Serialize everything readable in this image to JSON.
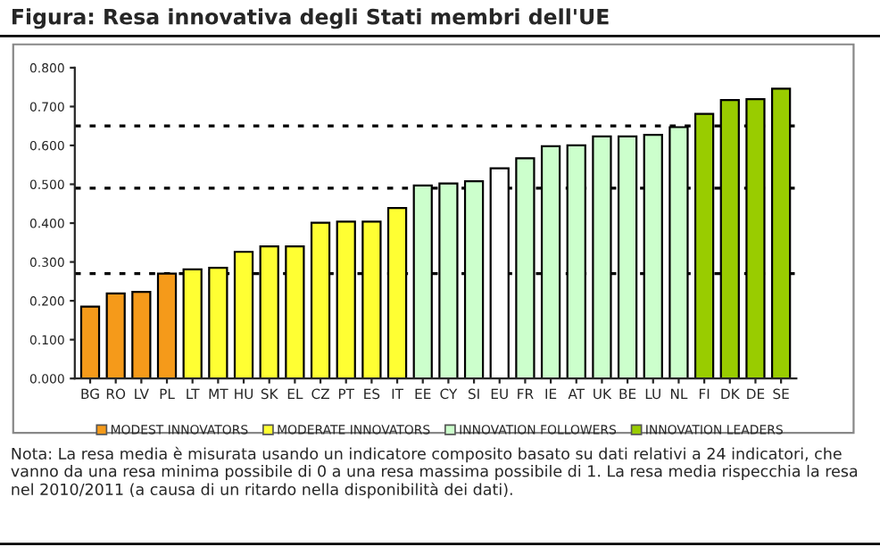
{
  "chart_data": {
    "type": "bar",
    "title": "Figura: Resa innovativa degli Stati membri dell'UE",
    "categories": [
      "BG",
      "RO",
      "LV",
      "PL",
      "LT",
      "MT",
      "HU",
      "SK",
      "EL",
      "CZ",
      "PT",
      "ES",
      "IT",
      "EE",
      "CY",
      "SI",
      "EU",
      "FR",
      "IE",
      "AT",
      "UK",
      "BE",
      "LU",
      "NL",
      "FI",
      "DK",
      "DE",
      "SE"
    ],
    "series": [
      {
        "name": "MODEST INNOVATORS",
        "color": "#f59a1a",
        "values": [
          0.185,
          0.219,
          0.223,
          0.27,
          null,
          null,
          null,
          null,
          null,
          null,
          null,
          null,
          null,
          null,
          null,
          null,
          null,
          null,
          null,
          null,
          null,
          null,
          null,
          null,
          null,
          null,
          null,
          null
        ]
      },
      {
        "name": "MODERATE INNOVATORS",
        "color": "#ffff33",
        "values": [
          null,
          null,
          null,
          null,
          0.281,
          0.285,
          0.326,
          0.34,
          0.34,
          0.401,
          0.404,
          0.404,
          0.439,
          null,
          null,
          null,
          null,
          null,
          null,
          null,
          null,
          null,
          null,
          null,
          null,
          null,
          null,
          null
        ]
      },
      {
        "name": "INNOVATION FOLLOWERS",
        "color": "#ccffcc",
        "values": [
          null,
          null,
          null,
          null,
          null,
          null,
          null,
          null,
          null,
          null,
          null,
          null,
          null,
          0.497,
          0.502,
          0.508,
          null,
          0.567,
          0.598,
          0.6,
          0.623,
          0.623,
          0.627,
          0.647,
          null,
          null,
          null,
          null
        ]
      },
      {
        "color": "#ffffff",
        "values": [
          null,
          null,
          null,
          null,
          null,
          null,
          null,
          null,
          null,
          null,
          null,
          null,
          null,
          null,
          null,
          null,
          0.541,
          null,
          null,
          null,
          null,
          null,
          null,
          null,
          null,
          null,
          null,
          null
        ]
      },
      {
        "name": "INNOVATION LEADERS",
        "color": "#99cc00",
        "values": [
          null,
          null,
          null,
          null,
          null,
          null,
          null,
          null,
          null,
          null,
          null,
          null,
          null,
          null,
          null,
          null,
          null,
          null,
          null,
          null,
          null,
          null,
          null,
          null,
          0.681,
          0.717,
          0.719,
          0.746
        ]
      }
    ],
    "ylim": [
      0,
      0.8
    ],
    "yticks": [
      {
        "value": 0,
        "label": "0.000"
      },
      {
        "value": 0.1,
        "label": "0.100"
      },
      {
        "value": 0.2,
        "label": "0.200"
      },
      {
        "value": 0.3,
        "label": "0.300"
      },
      {
        "value": 0.4,
        "label": "0.400"
      },
      {
        "value": 0.5,
        "label": "0.500"
      },
      {
        "value": 0.6,
        "label": "0.600"
      },
      {
        "value": 0.7,
        "label": "0.700"
      },
      {
        "value": 0.8,
        "label": "0.800"
      }
    ],
    "ref_lines": [
      {
        "axis": "y",
        "value": 0.27,
        "color": "#000000",
        "line_style": "dashed"
      },
      {
        "axis": "y",
        "value": 0.49,
        "color": "#000000",
        "line_style": "dashed"
      },
      {
        "axis": "y",
        "value": 0.65,
        "color": "#000000",
        "line_style": "dashed"
      }
    ],
    "grid": false,
    "legend": "bottom",
    "annotations": [
      "Nota: La resa media è misurata usando un indicatore composito basato su dati relativi a 24 indicatori, che vanno da una resa minima possibile di 0 a una resa massima possibile di 1. La resa media rispecchia la resa nel 2010/2011 (a causa di un ritardo nella disponibilità dei dati)."
    ]
  }
}
